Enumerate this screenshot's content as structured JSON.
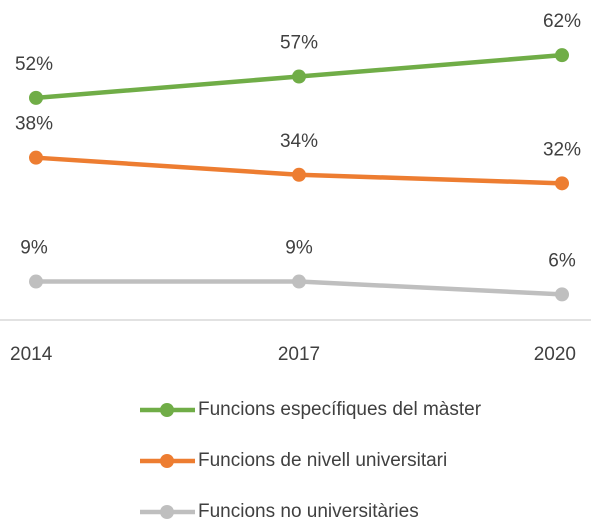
{
  "chart_data": {
    "type": "line",
    "categories": [
      "2014",
      "2017",
      "2020"
    ],
    "ylim": [
      0,
      70
    ],
    "legend": "bottom",
    "series": [
      {
        "name": "Funcions específiques del màster",
        "color": "#70ad47",
        "values": [
          52,
          57,
          62
        ],
        "value_labels": [
          "52%",
          "57%",
          "62%"
        ]
      },
      {
        "name": "Funcions de nivell universitari",
        "color": "#ed7d31",
        "values": [
          38,
          34,
          32
        ],
        "value_labels": [
          "38%",
          "34%",
          "32%"
        ]
      },
      {
        "name": "Funcions no universitàries",
        "color": "#bfbfbf",
        "values": [
          9,
          9,
          6
        ],
        "value_labels": [
          "9%",
          "9%",
          "6%"
        ]
      }
    ]
  }
}
